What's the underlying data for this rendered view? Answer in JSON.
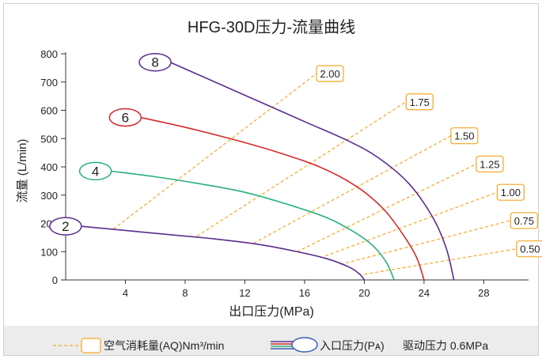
{
  "chart_data": {
    "type": "line",
    "title": "HFG-30D压力-流量曲线",
    "xlabel": "出口压力(MPa)",
    "ylabel": "流量 (L/min)",
    "xlim": [
      0,
      31
    ],
    "ylim": [
      0,
      800
    ],
    "x_ticks": [
      "4",
      "8",
      "12",
      "16",
      "20",
      "24",
      "28"
    ],
    "y_ticks": [
      "0",
      "100",
      "200",
      "300",
      "400",
      "500",
      "600",
      "700",
      "800"
    ],
    "grid": false,
    "series": [
      {
        "name": "8",
        "color": "#5b2c8f",
        "points": [
          [
            7,
            770
          ],
          [
            10,
            700
          ],
          [
            13,
            630
          ],
          [
            16,
            560
          ],
          [
            19,
            490
          ],
          [
            21,
            430
          ],
          [
            23,
            340
          ],
          [
            24.6,
            220
          ],
          [
            25.5,
            110
          ],
          [
            26,
            0
          ]
        ]
      },
      {
        "name": "6",
        "color": "#d42a2a",
        "points": [
          [
            5,
            575
          ],
          [
            8,
            540
          ],
          [
            11,
            500
          ],
          [
            14,
            455
          ],
          [
            17,
            400
          ],
          [
            19.5,
            330
          ],
          [
            21.3,
            250
          ],
          [
            22.6,
            160
          ],
          [
            23.5,
            80
          ],
          [
            24,
            0
          ]
        ]
      },
      {
        "name": "4",
        "color": "#2bb07e",
        "points": [
          [
            3,
            385
          ],
          [
            6,
            365
          ],
          [
            9,
            340
          ],
          [
            12,
            310
          ],
          [
            15,
            265
          ],
          [
            17.5,
            220
          ],
          [
            19.3,
            170
          ],
          [
            20.6,
            120
          ],
          [
            21.5,
            60
          ],
          [
            22,
            0
          ]
        ]
      },
      {
        "name": "2",
        "color": "#5b2c8f",
        "points": [
          [
            1,
            190
          ],
          [
            4,
            175
          ],
          [
            7,
            160
          ],
          [
            10,
            145
          ],
          [
            13,
            125
          ],
          [
            15.5,
            100
          ],
          [
            17.5,
            75
          ],
          [
            19,
            45
          ],
          [
            19.7,
            20
          ],
          [
            20,
            0
          ]
        ]
      }
    ],
    "air_lines": [
      {
        "label": "2.00",
        "from": [
          3.2,
          180
        ],
        "to": [
          16.8,
          730
        ]
      },
      {
        "label": "1.75",
        "from": [
          8.8,
          155
        ],
        "to": [
          22.8,
          630
        ]
      },
      {
        "label": "1.50",
        "from": [
          12.6,
          130
        ],
        "to": [
          25.8,
          510
        ]
      },
      {
        "label": "1.25",
        "from": [
          15.5,
          100
        ],
        "to": [
          27.5,
          410
        ]
      },
      {
        "label": "1.00",
        "from": [
          17.4,
          85
        ],
        "to": [
          28.9,
          310
        ]
      },
      {
        "label": "0.75",
        "from": [
          18.4,
          55
        ],
        "to": [
          29.8,
          210
        ]
      },
      {
        "label": "0.50",
        "from": [
          20,
          20
        ],
        "to": [
          30.2,
          110
        ]
      }
    ],
    "colors": {
      "air_line": "#f5a623",
      "axis": "#333333"
    }
  },
  "legend": {
    "air_label": "空气消耗量(AQ)Nm³/min",
    "inlet_label": "入口压力(Pᴀ)",
    "drive_label": "驱动压力 0.6MPa"
  }
}
